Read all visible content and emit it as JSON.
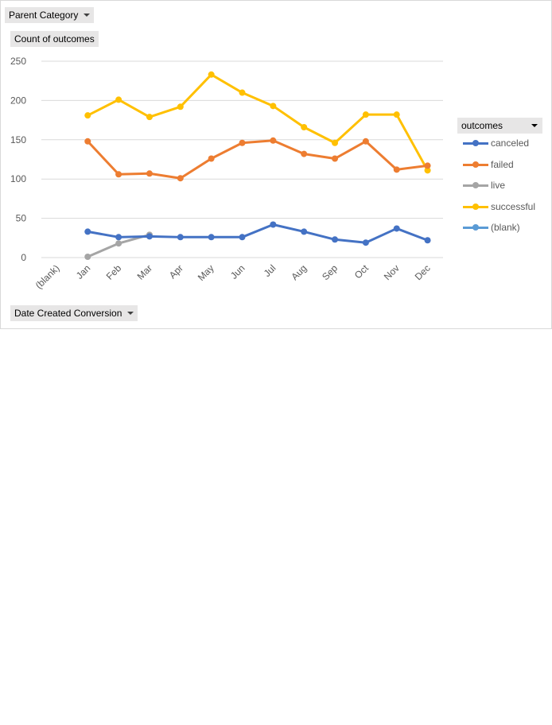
{
  "filters": {
    "parent_category_label": "Parent Category",
    "value_field_label": "Count of outcomes",
    "axis_field_label": "Date Created Conversion",
    "legend_field_label": "outcomes"
  },
  "chart_data": {
    "type": "line",
    "categories": [
      "(blank)",
      "Jan",
      "Feb",
      "Mar",
      "Apr",
      "May",
      "Jun",
      "Jul",
      "Aug",
      "Sep",
      "Oct",
      "Nov",
      "Dec"
    ],
    "ylim": [
      0,
      250
    ],
    "yticks": [
      0,
      50,
      100,
      150,
      200,
      250
    ],
    "grid": true,
    "legend_position": "right",
    "series": [
      {
        "name": "canceled",
        "color": "#4472c4",
        "values": [
          null,
          33,
          26,
          27,
          26,
          26,
          26,
          42,
          33,
          23,
          19,
          37,
          22
        ]
      },
      {
        "name": "failed",
        "color": "#ed7d31",
        "values": [
          null,
          148,
          106,
          107,
          101,
          126,
          146,
          149,
          132,
          126,
          148,
          112,
          117
        ]
      },
      {
        "name": "live",
        "color": "#a5a5a5",
        "values": [
          null,
          1,
          18,
          29,
          null,
          null,
          null,
          null,
          null,
          null,
          null,
          null,
          null
        ]
      },
      {
        "name": "successful",
        "color": "#ffc000",
        "values": [
          null,
          181,
          201,
          179,
          192,
          233,
          210,
          193,
          166,
          146,
          182,
          182,
          111
        ]
      },
      {
        "name": "(blank)",
        "color": "#5b9bd5",
        "values": [
          null,
          null,
          null,
          null,
          null,
          null,
          null,
          null,
          null,
          null,
          null,
          null,
          null
        ]
      }
    ]
  }
}
